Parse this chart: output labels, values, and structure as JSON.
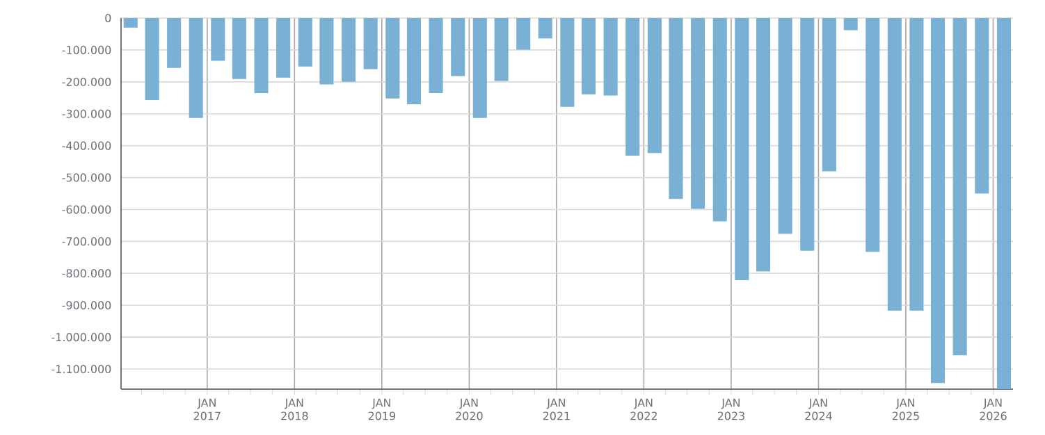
{
  "chart_data": {
    "type": "bar",
    "color": "#7ab0d3",
    "x": [
      "2016-02-15",
      "2016-05-15",
      "2016-08-15",
      "2016-11-15",
      "2017-02-15",
      "2017-05-15",
      "2017-08-15",
      "2017-11-15",
      "2018-02-15",
      "2018-05-15",
      "2018-08-15",
      "2018-11-15",
      "2019-02-15",
      "2019-05-15",
      "2019-08-15",
      "2019-11-15",
      "2020-02-15",
      "2020-05-15",
      "2020-08-15",
      "2020-11-15",
      "2021-02-15",
      "2021-05-15",
      "2021-08-15",
      "2021-11-15",
      "2022-02-15",
      "2022-05-15",
      "2022-08-15",
      "2022-11-15",
      "2023-02-15",
      "2023-05-15",
      "2023-08-15",
      "2023-11-15",
      "2024-02-15",
      "2024-05-15",
      "2024-08-15",
      "2024-11-15",
      "2025-02-15",
      "2025-05-15",
      "2025-08-15",
      "2025-11-15",
      "2026-02-15"
    ],
    "values": [
      -30000,
      -257000,
      -156000,
      -313000,
      -134000,
      -191000,
      -235000,
      -187000,
      -152000,
      -208000,
      -200000,
      -160000,
      -252000,
      -270000,
      -235000,
      -182000,
      -313000,
      -197000,
      -99000,
      -64000,
      -278000,
      -239000,
      -243000,
      -431000,
      -423000,
      -567000,
      -598000,
      -637000,
      -821000,
      -794000,
      -676000,
      -729000,
      -480000,
      -38000,
      -733000,
      -917000,
      -917000,
      -1144000,
      -1057000,
      -550000,
      -1163000
    ],
    "xlim": [
      "2016-01-06",
      "2026-03-25"
    ],
    "xticks": [
      {
        "value": "2016-04-01",
        "label": null
      },
      {
        "value": "2016-07-01",
        "label": null
      },
      {
        "value": "2016-10-01",
        "label": null
      },
      {
        "value": "2017-01-01",
        "label": "JAN 2017"
      },
      {
        "value": "2017-04-01",
        "label": null
      },
      {
        "value": "2017-07-01",
        "label": null
      },
      {
        "value": "2017-10-01",
        "label": null
      },
      {
        "value": "2018-01-01",
        "label": "JAN 2018"
      },
      {
        "value": "2018-04-01",
        "label": null
      },
      {
        "value": "2018-07-01",
        "label": null
      },
      {
        "value": "2018-10-01",
        "label": null
      },
      {
        "value": "2019-01-01",
        "label": "JAN 2019"
      },
      {
        "value": "2019-04-01",
        "label": null
      },
      {
        "value": "2019-07-01",
        "label": null
      },
      {
        "value": "2019-10-01",
        "label": null
      },
      {
        "value": "2020-01-01",
        "label": "JAN 2020"
      },
      {
        "value": "2020-04-01",
        "label": null
      },
      {
        "value": "2020-07-01",
        "label": null
      },
      {
        "value": "2020-10-01",
        "label": null
      },
      {
        "value": "2021-01-01",
        "label": "JAN 2021"
      },
      {
        "value": "2021-04-01",
        "label": null
      },
      {
        "value": "2021-07-01",
        "label": null
      },
      {
        "value": "2021-10-01",
        "label": null
      },
      {
        "value": "2022-01-01",
        "label": "JAN 2022"
      },
      {
        "value": "2022-04-01",
        "label": null
      },
      {
        "value": "2022-07-01",
        "label": null
      },
      {
        "value": "2022-10-01",
        "label": null
      },
      {
        "value": "2023-01-01",
        "label": "JAN 2023"
      },
      {
        "value": "2023-04-01",
        "label": null
      },
      {
        "value": "2023-07-01",
        "label": null
      },
      {
        "value": "2023-10-01",
        "label": null
      },
      {
        "value": "2024-01-01",
        "label": "JAN 2024"
      },
      {
        "value": "2024-04-01",
        "label": null
      },
      {
        "value": "2024-07-01",
        "label": null
      },
      {
        "value": "2024-10-01",
        "label": null
      },
      {
        "value": "2025-01-01",
        "label": "JAN 2025"
      },
      {
        "value": "2025-04-01",
        "label": null
      },
      {
        "value": "2025-07-01",
        "label": null
      },
      {
        "value": "2025-10-01",
        "label": null
      },
      {
        "value": "2026-01-01",
        "label": "JAN 2026"
      }
    ],
    "ylim": [
      -1163000,
      0
    ],
    "yticks": [
      0,
      {
        "value": -100000,
        "label": "-100.000"
      },
      {
        "value": -200000,
        "label": "-200.000"
      },
      {
        "value": -300000,
        "label": "-300.000"
      },
      {
        "value": -400000,
        "label": "-400.000"
      },
      {
        "value": -500000,
        "label": "-500.000"
      },
      {
        "value": -600000,
        "label": "-600.000"
      },
      {
        "value": -700000,
        "label": "-700.000"
      },
      {
        "value": -800000,
        "label": "-800.000"
      },
      {
        "value": -900000,
        "label": "-900.000"
      },
      {
        "value": -1000000,
        "label": "-1.000.000"
      },
      {
        "value": -1100000,
        "label": "-1.100.000"
      }
    ],
    "grid": true
  }
}
